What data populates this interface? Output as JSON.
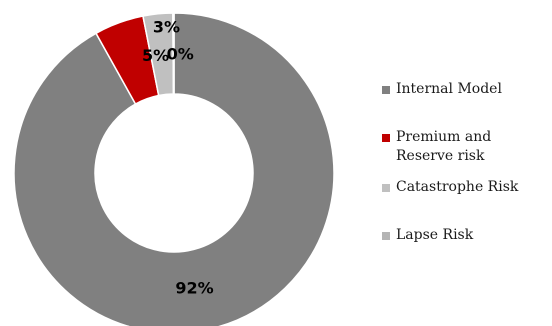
{
  "chart_data": {
    "type": "pie",
    "donut": true,
    "title": "",
    "legend_position": "right",
    "series": [
      {
        "name": "Internal Model",
        "value": 92,
        "label": "92%",
        "color": "#808080"
      },
      {
        "name": "Premium and Reserve risk",
        "value": 5,
        "label": "5%",
        "color": "#c00000"
      },
      {
        "name": "Catastrophe Risk",
        "value": 3,
        "label": "3%",
        "color": "#c0c0c0"
      },
      {
        "name": "Lapse Risk",
        "value": 0,
        "label": "0%",
        "color": "#b4b4b4"
      }
    ]
  }
}
